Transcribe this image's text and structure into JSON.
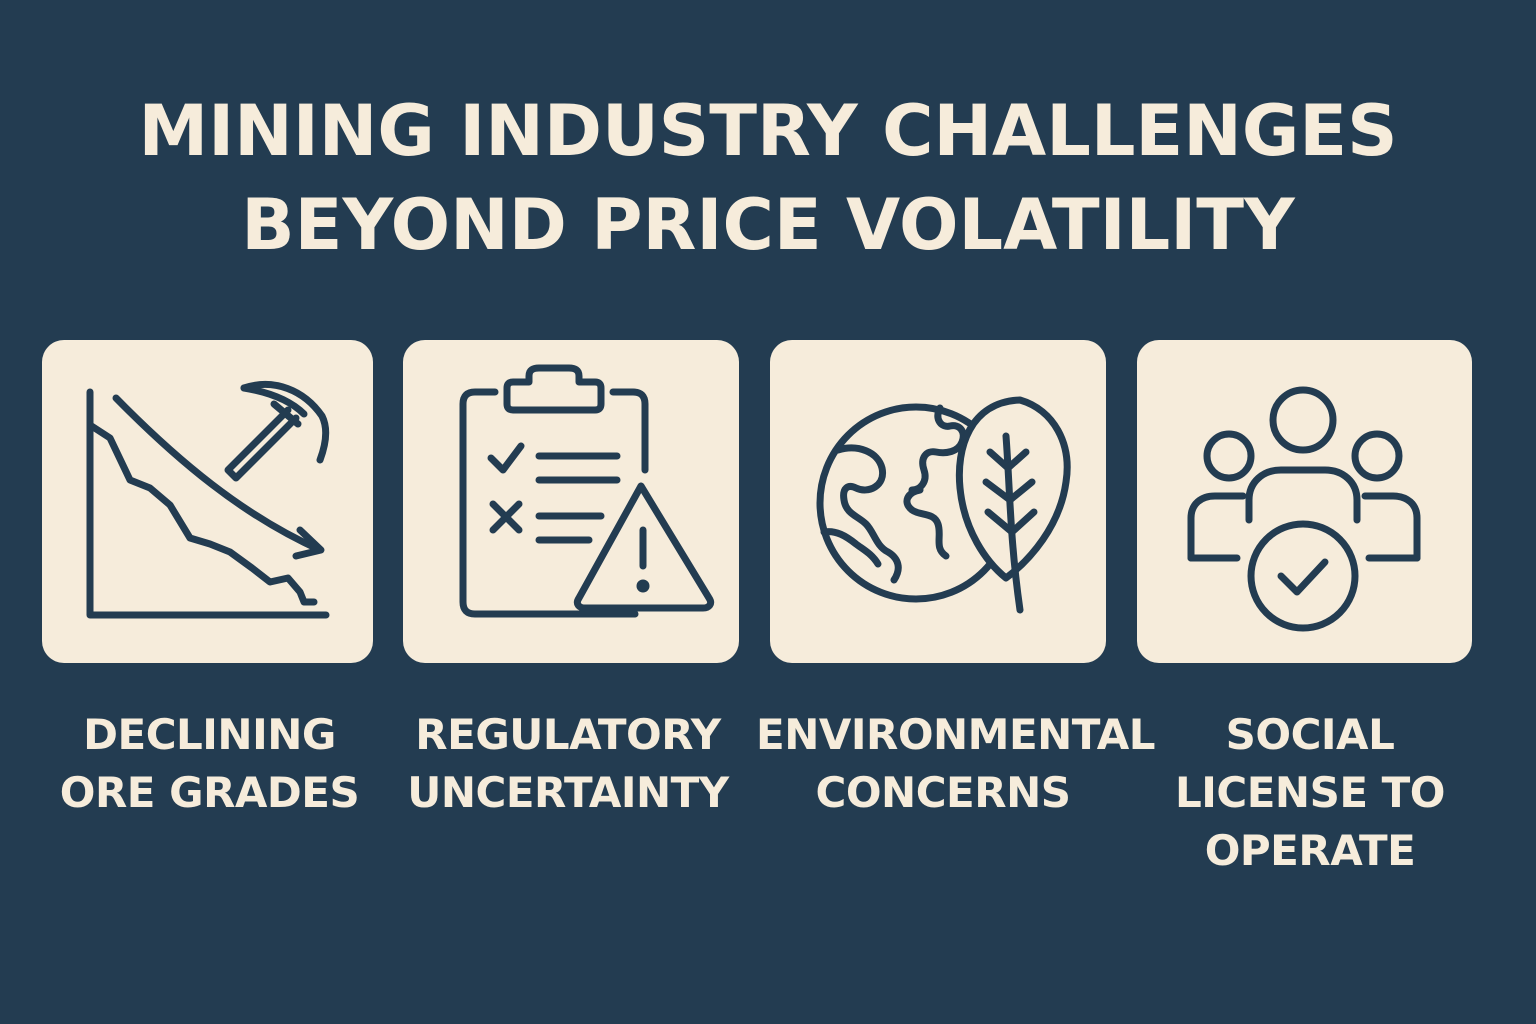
{
  "title": {
    "line1": "MINING INDUSTRY CHALLENGES",
    "line2": "BEYOND PRICE VOLATILITY"
  },
  "colors": {
    "background": "#233c51",
    "card": "#f6ecdb",
    "icon_stroke": "#233c51",
    "text": "#f6ecdb"
  },
  "cards": [
    {
      "icon": "declining-chart-pickaxe-icon",
      "label_lines": [
        "DECLINING",
        "ORE GRADES"
      ]
    },
    {
      "icon": "clipboard-warning-icon",
      "label_lines": [
        "REGULATORY",
        "UNCERTAINTY"
      ]
    },
    {
      "icon": "globe-leaf-icon",
      "label_lines": [
        "ENVIRONMENTAL",
        "CONCERNS"
      ]
    },
    {
      "icon": "community-check-icon",
      "label_lines": [
        "SOCIAL",
        "LICENSE TO",
        "OPERATE"
      ]
    }
  ]
}
